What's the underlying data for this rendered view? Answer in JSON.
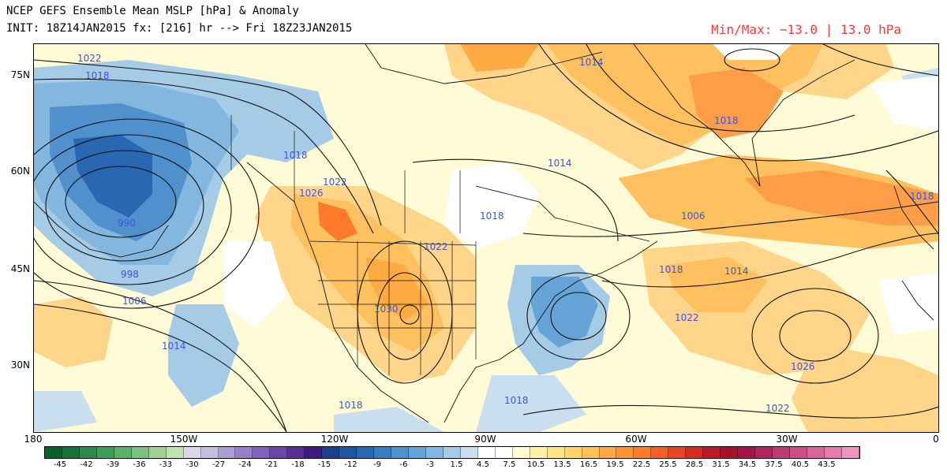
{
  "title": {
    "line1": "NCEP GEFS Ensemble Mean MSLP [hPa] & Anomaly",
    "line2": "INIT: 18Z14JAN2015 fx: [216] hr --> Fri 18Z23JAN2015",
    "minmax": "Min/Max: −13.0 | 13.0 hPa"
  },
  "map": {
    "lat_labels": [
      "75N",
      "60N",
      "45N",
      "30N"
    ],
    "lon_labels": [
      "180",
      "150W",
      "120W",
      "90W",
      "60W",
      "30W",
      "0"
    ],
    "isobar_labels": [
      "1022",
      "1018",
      "1018",
      "1022",
      "1026",
      "990",
      "998",
      "1006",
      "1014",
      "1030",
      "1022",
      "1018",
      "1014",
      "1014",
      "1018",
      "1006",
      "1018",
      "1014",
      "1022",
      "1026",
      "1022",
      "1018",
      "1018",
      "1018"
    ],
    "colors": {
      "negative_anomaly": "#4f8fd0",
      "positive_anomaly": "#f6a449",
      "isobar_label": "#3d55d6",
      "minmax_text": "#ff3b3b"
    }
  },
  "colorbar": {
    "ticks": [
      "-45",
      "-42",
      "-39",
      "-36",
      "-33",
      "-30",
      "-27",
      "-24",
      "-21",
      "-18",
      "-15",
      "-12",
      "-9",
      "-6",
      "-3",
      "1.5",
      "4.5",
      "7.5",
      "10.5",
      "13.5",
      "16.5",
      "19.5",
      "22.5",
      "25.5",
      "28.5",
      "31.5",
      "34.5",
      "37.5",
      "40.5",
      "43.5"
    ],
    "colors": [
      "#0b5f2a",
      "#17733a",
      "#2b8a49",
      "#3f9d5a",
      "#5cb06c",
      "#7bc17f",
      "#9fd293",
      "#c2e3b1",
      "#dcd6ea",
      "#c6bedf",
      "#ad9fd1",
      "#9682c3",
      "#7f64b3",
      "#6a47a2",
      "#55308f",
      "#3f1c7b",
      "#1e3f8a",
      "#23539f",
      "#2a67b3",
      "#3a7cc2",
      "#4f90cd",
      "#66a3d6",
      "#84b7df",
      "#a6cbe7",
      "#c9dff0",
      "#ffffff",
      "#ffffff",
      "#fffbd0",
      "#fff2a8",
      "#ffe58a",
      "#ffd56c",
      "#ffc257",
      "#ffab44",
      "#ff9434",
      "#ff7a2a",
      "#f75f26",
      "#e94524",
      "#d42e24",
      "#bd1a25",
      "#a6102a",
      "#a31449",
      "#b0255e",
      "#bf3a73",
      "#cd4f88",
      "#d9659b",
      "#e37cad",
      "#ec95bf"
    ]
  }
}
